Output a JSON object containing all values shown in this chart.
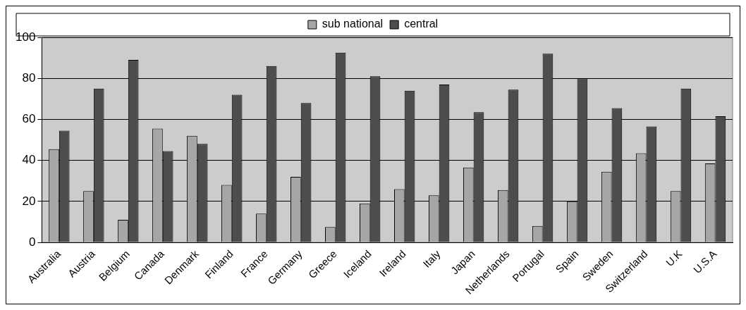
{
  "chart_data": {
    "type": "bar",
    "categories": [
      "Australia",
      "Austria",
      "Belgium",
      "Canada",
      "Denmark",
      "Finland",
      "France",
      "Germany",
      "Greece",
      "Iceland",
      "Ireland",
      "Italy",
      "Japan",
      "Netherlands",
      "Portugal",
      "Spain",
      "Sweden",
      "Switzerland",
      "U.K",
      "U.S.A"
    ],
    "series": [
      {
        "name": "sub national",
        "color": "#a6a6a6",
        "values": [
          45.5,
          25,
          11,
          55.5,
          52,
          28,
          14,
          32,
          7.5,
          19,
          26,
          23,
          36.5,
          25.5,
          8,
          20,
          34.5,
          43.5,
          25,
          38.5
        ]
      },
      {
        "name": "central",
        "color": "#4d4d4d",
        "values": [
          54.5,
          75,
          89,
          44.5,
          48,
          72,
          86,
          68,
          92.5,
          81,
          74,
          77,
          63.5,
          74.5,
          92,
          80,
          65.5,
          56.5,
          75,
          61.5
        ]
      }
    ],
    "ylim": [
      0,
      100
    ],
    "yticks": [
      0,
      20,
      40,
      60,
      80,
      100
    ],
    "grid": "y",
    "legend": "top"
  }
}
